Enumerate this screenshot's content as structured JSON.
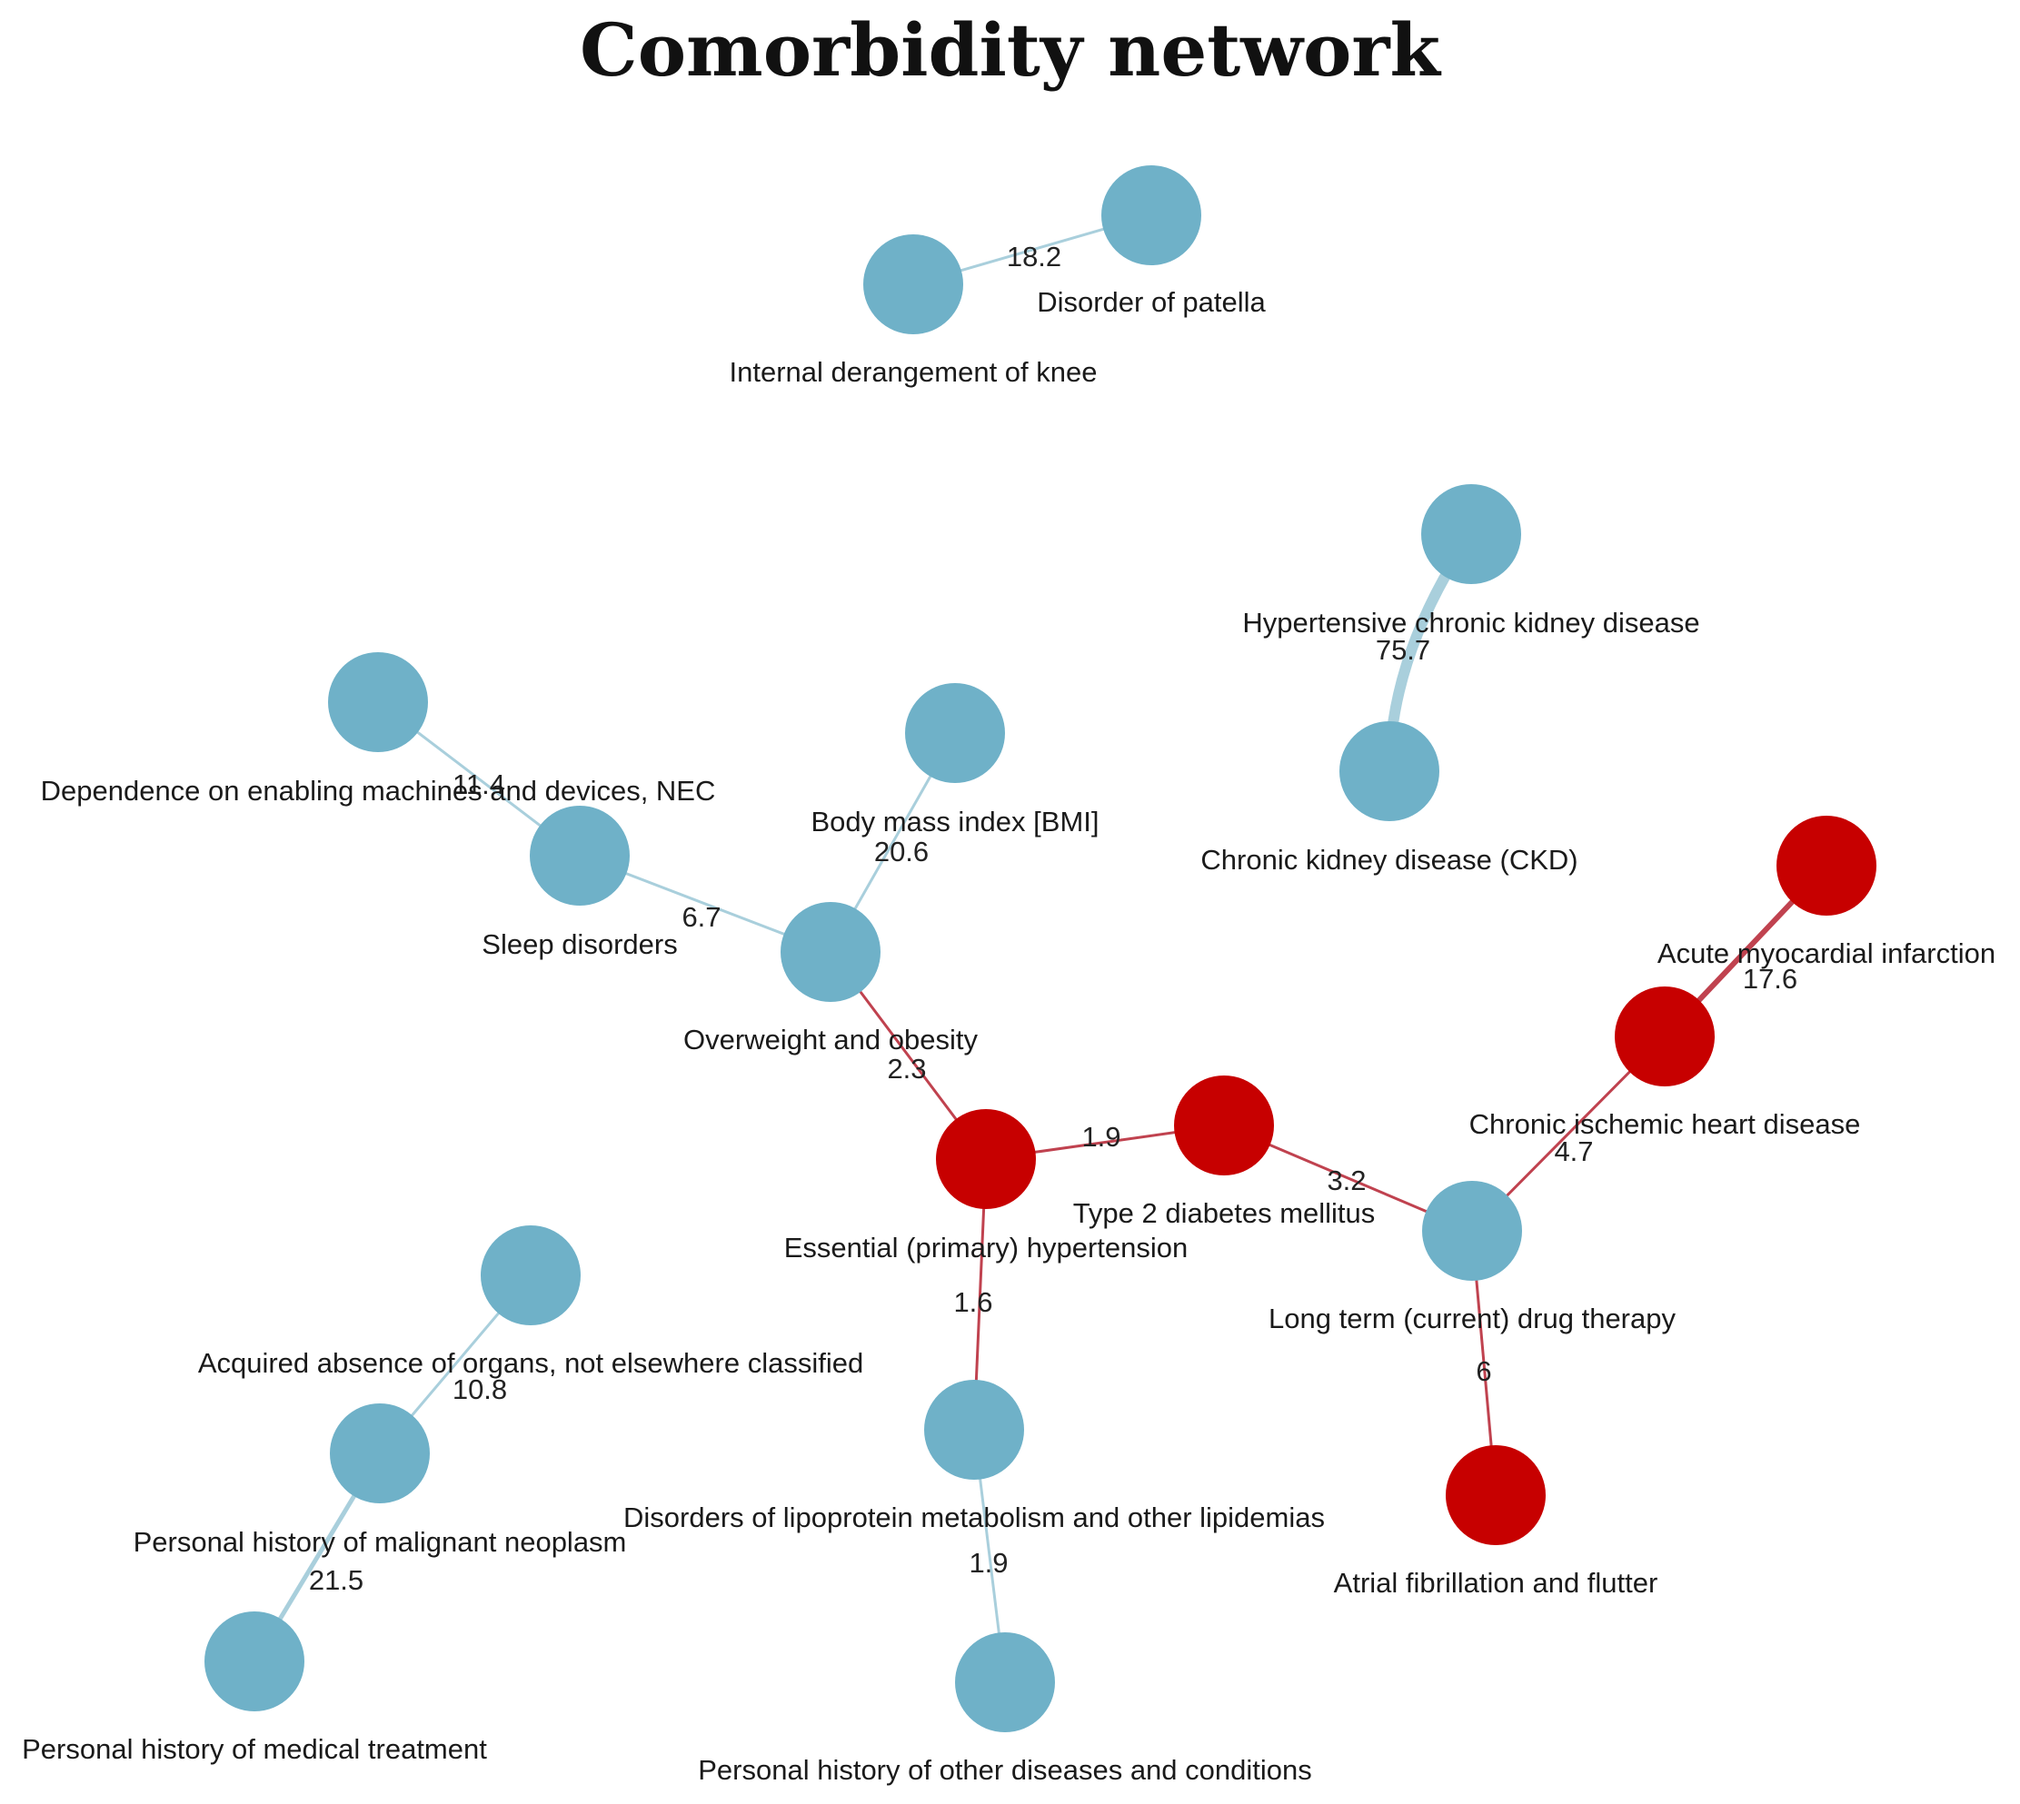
{
  "title": "Comorbidity network",
  "colors": {
    "blue_node": "#6fb1c8",
    "red_node": "#c70000",
    "blue_edge": "#a9cfdc",
    "red_edge": "#c0424f"
  },
  "nodes": [
    {
      "id": "patella",
      "label": "Disorder of patella",
      "color": "blue"
    },
    {
      "id": "knee",
      "label": "Internal derangement of knee",
      "color": "blue"
    },
    {
      "id": "hckd",
      "label": "Hypertensive chronic kidney disease",
      "color": "blue"
    },
    {
      "id": "ckd",
      "label": "Chronic kidney disease (CKD)",
      "color": "blue"
    },
    {
      "id": "dep",
      "label": "Dependence on enabling machines and devices, NEC",
      "color": "blue"
    },
    {
      "id": "sleep",
      "label": "Sleep disorders",
      "color": "blue"
    },
    {
      "id": "bmi",
      "label": "Body mass index [BMI]",
      "color": "blue"
    },
    {
      "id": "obesity",
      "label": "Overweight and obesity",
      "color": "blue"
    },
    {
      "id": "ami",
      "label": "Acute myocardial infarction",
      "color": "red"
    },
    {
      "id": "cihd",
      "label": "Chronic ischemic heart disease",
      "color": "red"
    },
    {
      "id": "t2d",
      "label": "Type 2 diabetes mellitus",
      "color": "red"
    },
    {
      "id": "htn",
      "label": "Essential (primary) hypertension",
      "color": "red"
    },
    {
      "id": "ltdt",
      "label": "Long term (current) drug therapy",
      "color": "blue"
    },
    {
      "id": "afib",
      "label": "Atrial fibrillation and flutter",
      "color": "red"
    },
    {
      "id": "acq",
      "label": "Acquired absence of organs, not elsewhere classified",
      "color": "blue"
    },
    {
      "id": "phmn",
      "label": "Personal history of malignant neoplasm",
      "color": "blue"
    },
    {
      "id": "phmt",
      "label": "Personal history of medical treatment",
      "color": "blue"
    },
    {
      "id": "lipid",
      "label": "Disorders of lipoprotein metabolism and other lipidemias",
      "color": "blue"
    },
    {
      "id": "phod",
      "label": "Personal history of other diseases and conditions",
      "color": "blue"
    }
  ],
  "edges": [
    {
      "source": "knee",
      "target": "patella",
      "weight": "18.2"
    },
    {
      "source": "hckd",
      "target": "ckd",
      "weight": "75.7"
    },
    {
      "source": "dep",
      "target": "sleep",
      "weight": "11.4"
    },
    {
      "source": "sleep",
      "target": "obesity",
      "weight": "6.7"
    },
    {
      "source": "bmi",
      "target": "obesity",
      "weight": "20.6"
    },
    {
      "source": "obesity",
      "target": "htn",
      "weight": "2.3"
    },
    {
      "source": "htn",
      "target": "t2d",
      "weight": "1.9"
    },
    {
      "source": "t2d",
      "target": "ltdt",
      "weight": "3.2"
    },
    {
      "source": "ltdt",
      "target": "cihd",
      "weight": "4.7"
    },
    {
      "source": "cihd",
      "target": "ami",
      "weight": "17.6"
    },
    {
      "source": "ltdt",
      "target": "afib",
      "weight": "6"
    },
    {
      "source": "htn",
      "target": "lipid",
      "weight": "1.6"
    },
    {
      "source": "lipid",
      "target": "phod",
      "weight": "1.9"
    },
    {
      "source": "acq",
      "target": "phmn",
      "weight": "10.8"
    },
    {
      "source": "phmn",
      "target": "phmt",
      "weight": "21.5"
    }
  ]
}
